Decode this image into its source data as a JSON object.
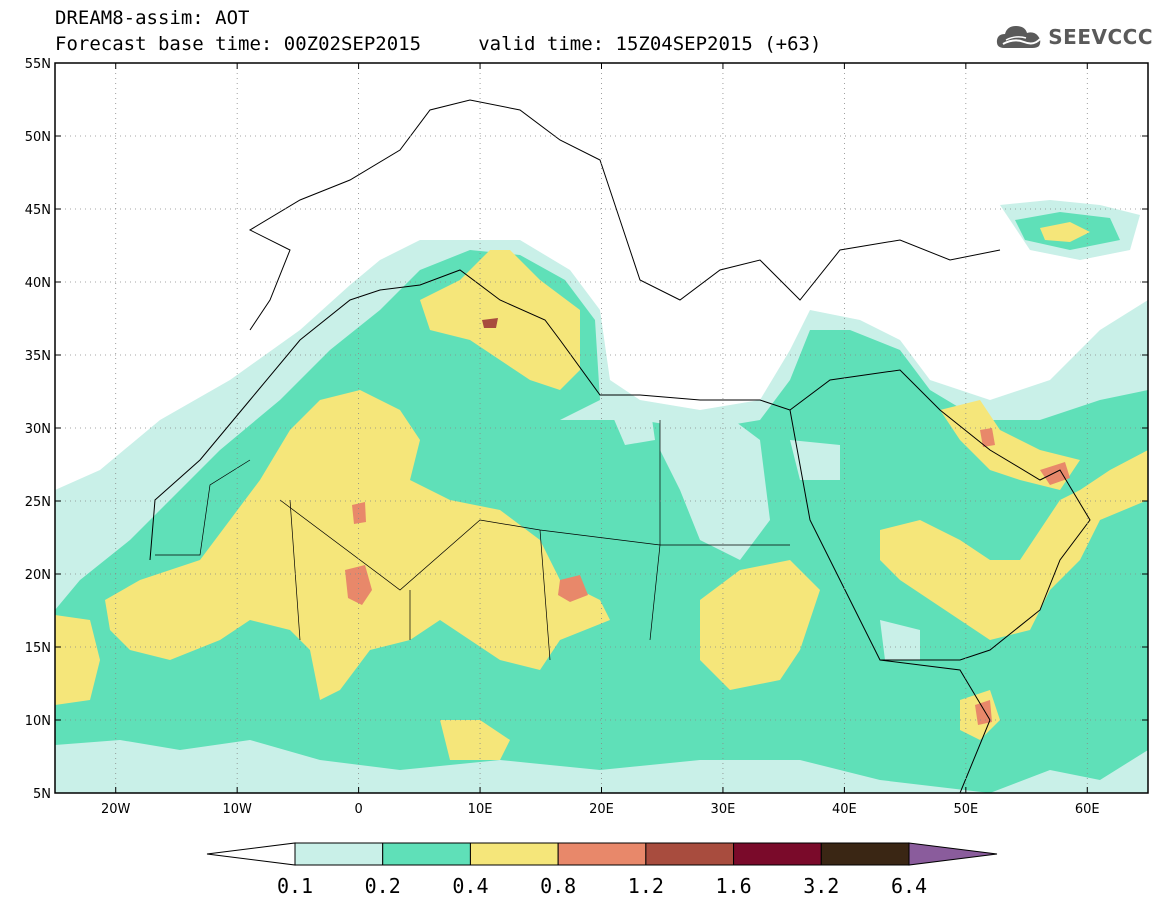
{
  "header": {
    "line1": "DREAM8-assim: AOT",
    "line2": "Forecast base time: 00Z02SEP2015     valid time: 15Z04SEP2015 (+63)",
    "logo_text": "SEEVCCC",
    "logo_icon": "cloud-icon"
  },
  "map": {
    "lon_range": [
      -25,
      65
    ],
    "lat_range": [
      5,
      55
    ],
    "lat_ticks": [
      {
        "value": 55,
        "label": "55N"
      },
      {
        "value": 50,
        "label": "50N"
      },
      {
        "value": 45,
        "label": "45N"
      },
      {
        "value": 40,
        "label": "40N"
      },
      {
        "value": 35,
        "label": "35N"
      },
      {
        "value": 30,
        "label": "30N"
      },
      {
        "value": 25,
        "label": "25N"
      },
      {
        "value": 20,
        "label": "20N"
      },
      {
        "value": 15,
        "label": "15N"
      },
      {
        "value": 10,
        "label": "10N"
      },
      {
        "value": 5,
        "label": "5N"
      }
    ],
    "lon_ticks": [
      {
        "value": -20,
        "label": "20W"
      },
      {
        "value": -10,
        "label": "10W"
      },
      {
        "value": 0,
        "label": "0"
      },
      {
        "value": 10,
        "label": "10E"
      },
      {
        "value": 20,
        "label": "20E"
      },
      {
        "value": 30,
        "label": "30E"
      },
      {
        "value": 40,
        "label": "40E"
      },
      {
        "value": 50,
        "label": "50E"
      },
      {
        "value": 60,
        "label": "60E"
      }
    ],
    "gridlines": "dotted",
    "field": "Aerosol optical thickness (dust), Saharan plume over N. Africa, Arabia and Mediterranean"
  },
  "colorbar": {
    "levels": [
      "0.1",
      "0.2",
      "0.4",
      "0.8",
      "1.2",
      "1.6",
      "3.2",
      "6.4"
    ],
    "colors": [
      "#ffffff",
      "#c9f0e8",
      "#5fe0b8",
      "#f5e67a",
      "#e8886a",
      "#a84c3e",
      "#7a0a2a",
      "#3a2614",
      "#8a5c9c"
    ]
  },
  "palette": {
    "c1": "#c9f0e8",
    "c2": "#5fe0b8",
    "c3": "#f5e67a",
    "c4": "#e8886a",
    "c5": "#a84c3e"
  }
}
